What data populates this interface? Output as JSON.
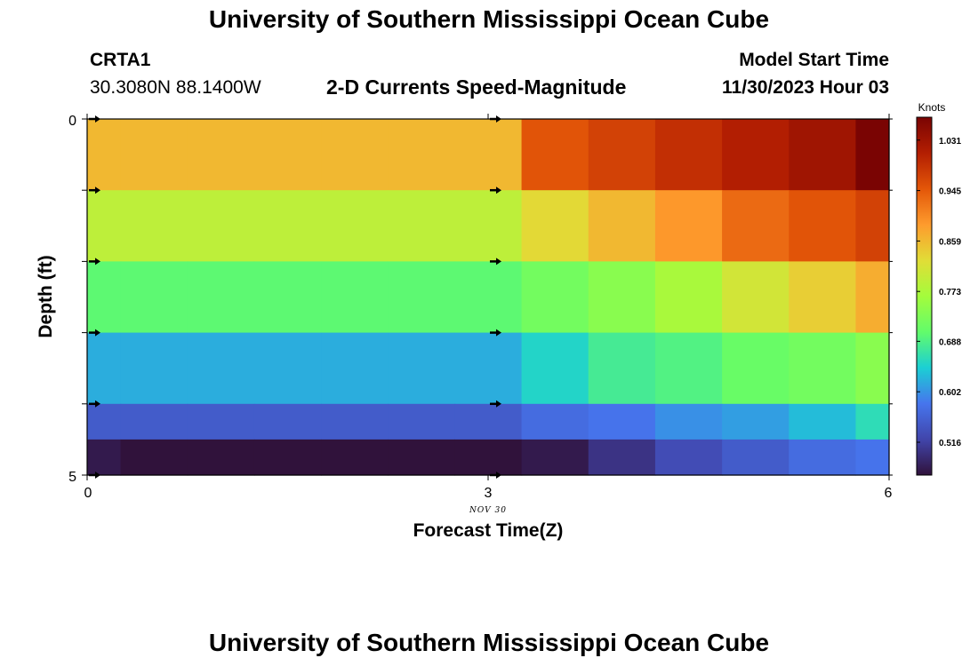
{
  "header": {
    "title": "University of Southern Mississippi Ocean Cube",
    "station": "CRTA1",
    "coordinates": "30.3080N  88.1400W",
    "model_start_label": "Model Start Time",
    "model_start_value": "11/30/2023 Hour 03"
  },
  "footer": {
    "repeated_title": "University of Southern Mississippi Ocean Cube"
  },
  "chart_data": {
    "type": "heatmap",
    "title": "2-D Currents Speed-Magnitude",
    "xlabel": "Forecast Time(Z)",
    "ylabel": "Depth (ft)",
    "x_date_label": "NOV 30",
    "xlim": [
      0,
      6
    ],
    "ylim": [
      0,
      5
    ],
    "x_ticks": [
      "0",
      "3",
      "6"
    ],
    "y_ticks": [
      "0",
      "5"
    ],
    "x_time": [
      0,
      0.5,
      1,
      1.5,
      2,
      2.5,
      3,
      3.5,
      4,
      4.5,
      5,
      5.5,
      6
    ],
    "depth_ft": [
      0.5,
      1.5,
      2.5,
      3.5,
      4.5,
      5
    ],
    "speed_knots": [
      [
        0.86,
        0.86,
        0.86,
        0.86,
        0.86,
        0.86,
        0.86,
        0.95,
        0.97,
        0.99,
        1.01,
        1.03,
        1.07
      ],
      [
        0.79,
        0.79,
        0.79,
        0.79,
        0.79,
        0.79,
        0.79,
        0.83,
        0.86,
        0.89,
        0.93,
        0.95,
        0.97
      ],
      [
        0.7,
        0.7,
        0.7,
        0.7,
        0.7,
        0.7,
        0.7,
        0.72,
        0.74,
        0.77,
        0.81,
        0.84,
        0.87
      ],
      [
        0.62,
        0.62,
        0.62,
        0.62,
        0.62,
        0.62,
        0.62,
        0.65,
        0.68,
        0.69,
        0.71,
        0.72,
        0.74
      ],
      [
        0.55,
        0.55,
        0.55,
        0.55,
        0.55,
        0.55,
        0.55,
        0.57,
        0.58,
        0.6,
        0.61,
        0.63,
        0.66
      ],
      [
        0.47,
        0.46,
        0.45,
        0.45,
        0.45,
        0.44,
        0.44,
        0.47,
        0.5,
        0.53,
        0.55,
        0.57,
        0.58
      ]
    ],
    "arrow_times": [
      0,
      3
    ],
    "arrow_depths_ft": [
      0,
      1,
      2,
      3,
      4,
      5
    ],
    "colorbar": {
      "unit": "Knots",
      "min": 0.46,
      "max": 1.07,
      "tick_values": [
        1.031,
        0.945,
        0.859,
        0.773,
        0.688,
        0.602,
        0.516
      ],
      "tick_labels": [
        "1.031",
        "0.945",
        "0.859",
        "0.773",
        "0.688",
        "0.602",
        "0.516"
      ],
      "color_stops": [
        "#30123b",
        "#4145ab",
        "#4675ed",
        "#1bcfd4",
        "#62fc6b",
        "#a4fc3c",
        "#e1dd37",
        "#fe9b2d",
        "#e35608",
        "#b31e02",
        "#7a0403"
      ]
    }
  }
}
